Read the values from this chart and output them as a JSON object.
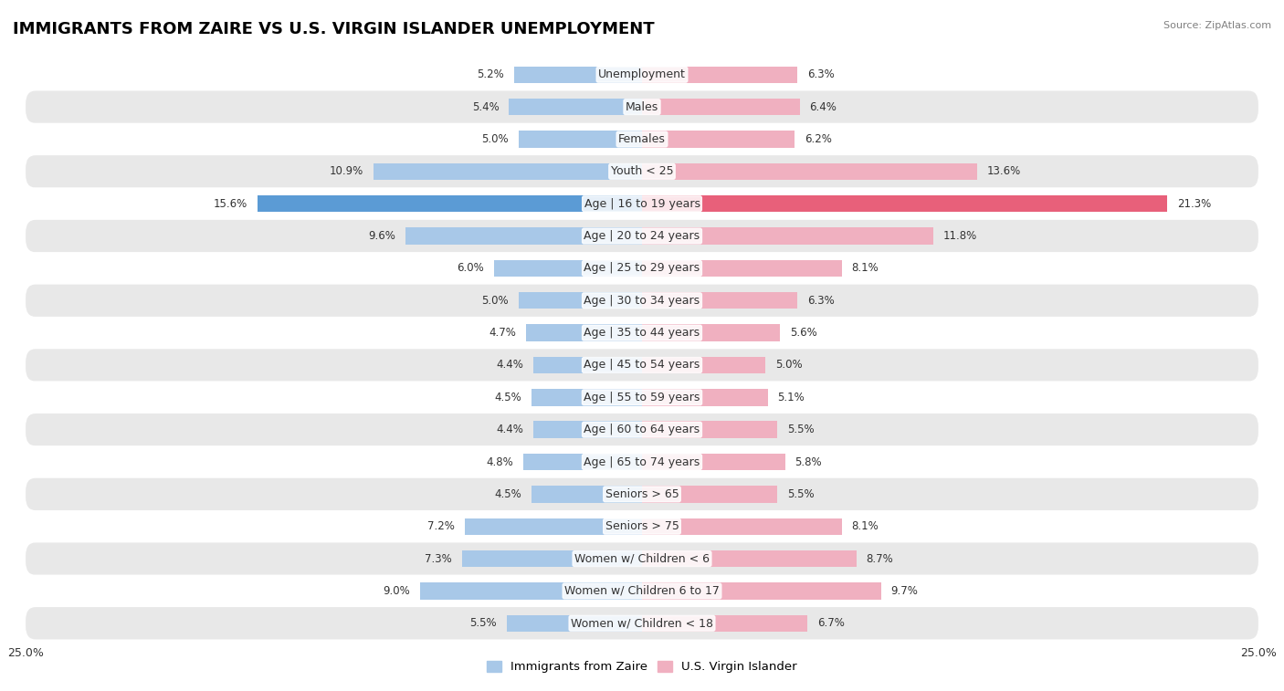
{
  "title": "IMMIGRANTS FROM ZAIRE VS U.S. VIRGIN ISLANDER UNEMPLOYMENT",
  "source": "Source: ZipAtlas.com",
  "categories": [
    "Unemployment",
    "Males",
    "Females",
    "Youth < 25",
    "Age | 16 to 19 years",
    "Age | 20 to 24 years",
    "Age | 25 to 29 years",
    "Age | 30 to 34 years",
    "Age | 35 to 44 years",
    "Age | 45 to 54 years",
    "Age | 55 to 59 years",
    "Age | 60 to 64 years",
    "Age | 65 to 74 years",
    "Seniors > 65",
    "Seniors > 75",
    "Women w/ Children < 6",
    "Women w/ Children 6 to 17",
    "Women w/ Children < 18"
  ],
  "left_values": [
    5.2,
    5.4,
    5.0,
    10.9,
    15.6,
    9.6,
    6.0,
    5.0,
    4.7,
    4.4,
    4.5,
    4.4,
    4.8,
    4.5,
    7.2,
    7.3,
    9.0,
    5.5
  ],
  "right_values": [
    6.3,
    6.4,
    6.2,
    13.6,
    21.3,
    11.8,
    8.1,
    6.3,
    5.6,
    5.0,
    5.1,
    5.5,
    5.8,
    5.5,
    8.1,
    8.7,
    9.7,
    6.7
  ],
  "left_color": "#a8c8e8",
  "right_color": "#f0b0c0",
  "left_highlight_color": "#5b9bd5",
  "right_highlight_color": "#e8607a",
  "highlight_index": 4,
  "axis_limit": 25.0,
  "background_color": "#ffffff",
  "row_bg_light": "#ffffff",
  "row_bg_dark": "#e8e8e8",
  "left_label": "Immigrants from Zaire",
  "right_label": "U.S. Virgin Islander",
  "title_fontsize": 13,
  "label_fontsize": 9,
  "value_fontsize": 8.5
}
